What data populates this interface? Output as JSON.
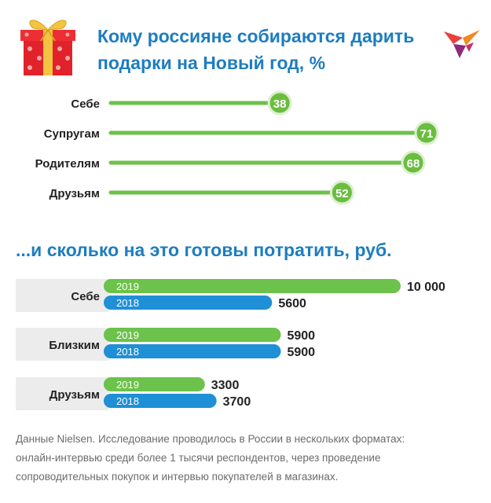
{
  "header": {
    "title_lines": [
      "Кому россияне собираются дарить",
      "подарки на Новый год, %"
    ],
    "colors": {
      "title": "#1d7dbf",
      "green": "#6cc24a",
      "blue": "#1f8fd6"
    }
  },
  "icons": {
    "gift": "gift-icon",
    "logo": "kp-bird-logo-icon"
  },
  "subtitle": "...и сколько на это готовы потратить, руб.",
  "chart_data": [
    {
      "type": "bar",
      "title": "Кому россияне собираются дарить подарки на Новый год, %",
      "categories": [
        "Себе",
        "Супругам",
        "Родителям",
        "Друзьям"
      ],
      "values": [
        38,
        71,
        68,
        52
      ],
      "value_labels": [
        "38",
        "71",
        "68",
        "52"
      ],
      "ylim": [
        0,
        71
      ],
      "orientation": "horizontal",
      "style": "lollipop",
      "color": "#6cc24a",
      "grid": false
    },
    {
      "type": "bar",
      "title": "...и сколько на это готовы потратить, руб.",
      "orientation": "horizontal",
      "categories": [
        "Себе",
        "Близким",
        "Друзьям"
      ],
      "series": [
        {
          "name": "2019",
          "values": [
            10000,
            5900,
            3300
          ],
          "labels": [
            "10 000",
            "5900",
            "3300"
          ],
          "color": "#6cc24a"
        },
        {
          "name": "2018",
          "values": [
            5600,
            5900,
            3700
          ],
          "labels": [
            "5600",
            "5900",
            "3700"
          ],
          "color": "#1f8fd6"
        }
      ],
      "xlim": [
        0,
        10000
      ],
      "grid": false
    }
  ],
  "footnote_lines": [
    "Данные Nielsen. Исследование проводилось в России в нескольких форматах:",
    "онлайн-интервью среди более 1 тысячи респондентов, через проведение",
    "сопроводительных покупок и интервью покупателей в магазинах."
  ]
}
